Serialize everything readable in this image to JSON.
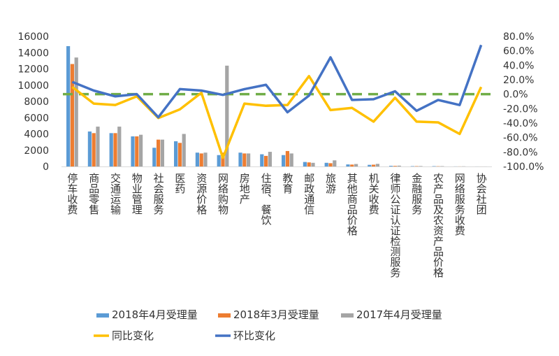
{
  "chart_data": {
    "type": "bar",
    "title": "",
    "categories": [
      "停车收费",
      "商品零售",
      "交通运输",
      "物业管理",
      "社会服务",
      "医药",
      "资源价格",
      "网络购物",
      "房地产",
      "住宿、餐饮",
      "教育",
      "邮政通信",
      "旅游",
      "其他商品价格",
      "机关收费",
      "律师公证认证检测服务",
      "金融服务",
      "农产品及农资产品价格",
      "网络服务收费",
      "协会社团"
    ],
    "series": [
      {
        "name": "2018年4月受理量",
        "axis": "left",
        "chart": "bar",
        "color": "#5B9BD5",
        "values": [
          14800,
          4300,
          4100,
          3700,
          2300,
          3100,
          1700,
          1400,
          1700,
          1500,
          1400,
          550,
          450,
          250,
          200,
          80,
          40,
          40,
          10,
          5
        ]
      },
      {
        "name": "2018年3月受理量",
        "axis": "left",
        "chart": "bar",
        "color": "#ED7D31",
        "values": [
          12600,
          4100,
          4100,
          3700,
          3300,
          2900,
          1600,
          1700,
          1600,
          1300,
          1900,
          500,
          400,
          230,
          220,
          70,
          40,
          30,
          10,
          3
        ]
      },
      {
        "name": "2017年4月受理量",
        "axis": "left",
        "chart": "bar",
        "color": "#A5A5A5",
        "values": [
          13400,
          4900,
          4900,
          3900,
          3300,
          4000,
          1700,
          12400,
          1600,
          1800,
          1600,
          450,
          750,
          300,
          320,
          100,
          50,
          40,
          20,
          5
        ]
      },
      {
        "name": "同比变化",
        "axis": "right",
        "chart": "line",
        "color": "#FFC000",
        "values": [
          10,
          -13,
          -15,
          -3,
          -33,
          -21,
          2,
          -88,
          -13,
          -16,
          -15,
          25,
          -22,
          -19,
          -38,
          -5,
          -38,
          -39,
          -55,
          10
        ]
      },
      {
        "name": "环比变化",
        "axis": "right",
        "chart": "line",
        "color": "#4472C4",
        "values": [
          17,
          5,
          -3,
          0,
          -32,
          7,
          5,
          -1,
          7,
          13,
          -25,
          -2,
          51,
          -8,
          -7,
          4,
          -23,
          -8,
          -15,
          68
        ]
      }
    ],
    "reference_line": {
      "axis": "right",
      "value": 0,
      "color": "#70AD47",
      "style": "dashed"
    },
    "y_left": {
      "ylim": [
        0,
        16000
      ],
      "ticks": [
        "0",
        "2000",
        "4000",
        "6000",
        "8000",
        "10000",
        "12000",
        "14000",
        "16000"
      ]
    },
    "y_right": {
      "ylim": [
        -100,
        80
      ],
      "ticks": [
        "-100.0%",
        "-80.0%",
        "-60.0%",
        "-40.0%",
        "-20.0%",
        "0.0%",
        "20.0%",
        "40.0%",
        "60.0%",
        "80.0%"
      ]
    },
    "xlabel": "",
    "ylabel": "",
    "legend": {
      "position": "bottom",
      "items": [
        {
          "label": "2018年4月受理量",
          "color": "#5B9BD5",
          "kind": "bar"
        },
        {
          "label": "2018年3月受理量",
          "color": "#ED7D31",
          "kind": "bar"
        },
        {
          "label": "2017年4月受理量",
          "color": "#A5A5A5",
          "kind": "bar"
        },
        {
          "label": "同比变化",
          "color": "#FFC000",
          "kind": "line"
        },
        {
          "label": "环比变化",
          "color": "#4472C4",
          "kind": "line"
        }
      ]
    }
  }
}
